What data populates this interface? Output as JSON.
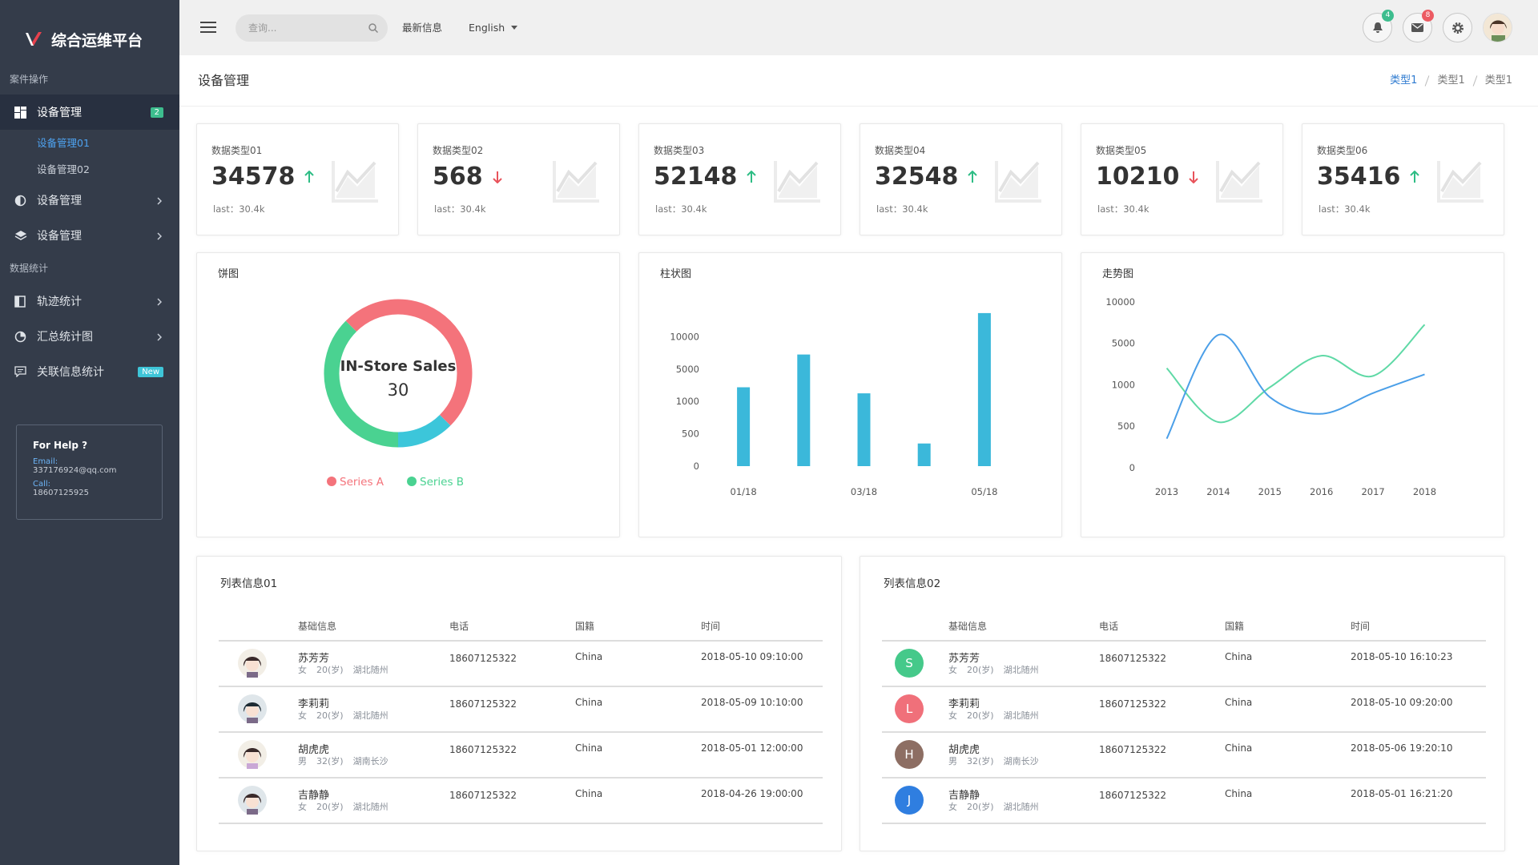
{
  "sidebar": {
    "brand": "综合运维平台",
    "groups": [
      {
        "title": "案件操作",
        "items": [
          {
            "label": "设备管理",
            "icon": "grid",
            "badge": "2",
            "badge_color": "#3dbd8e",
            "active": true,
            "active_child": 0,
            "children": [
              "设备管理01",
              "设备管理02"
            ]
          },
          {
            "label": "设备管理",
            "icon": "half",
            "arrow": true
          },
          {
            "label": "设备管理",
            "icon": "layers",
            "arrow": true
          }
        ]
      },
      {
        "title": "数据统计",
        "items": [
          {
            "label": "轨迹统计",
            "icon": "book",
            "arrow": true
          },
          {
            "label": "汇总统计图",
            "icon": "pie",
            "arrow": true
          },
          {
            "label": "关联信息统计",
            "icon": "chat",
            "badge": "New",
            "badge_color": "#3ec5d8"
          }
        ]
      }
    ],
    "help": {
      "title": "For Help ?",
      "email_label": "Email:",
      "email": "337176924@qq.com",
      "call_label": "Call:",
      "call": "18607125925"
    }
  },
  "topbar": {
    "search_placeholder": "查询...",
    "news": "最新信息",
    "language": "English",
    "notifications": 4,
    "messages": 8
  },
  "page": {
    "title": "设备管理",
    "breadcrumb": [
      "类型1",
      "类型1",
      "类型1"
    ]
  },
  "stats": [
    {
      "label": "数据类型01",
      "value": 34578,
      "trend": "up",
      "last": "last：30.4k"
    },
    {
      "label": "数据类型02",
      "value": 568,
      "trend": "down",
      "last": "last：30.4k"
    },
    {
      "label": "数据类型03",
      "value": 52148,
      "trend": "up",
      "last": "last：30.4k"
    },
    {
      "label": "数据类型04",
      "value": 32548,
      "trend": "up",
      "last": "last：30.4k"
    },
    {
      "label": "数据类型05",
      "value": 10210,
      "trend": "down",
      "last": "last：30.4k"
    },
    {
      "label": "数据类型06",
      "value": 35416,
      "trend": "up",
      "last": "last：30.4k"
    }
  ],
  "chart_data": [
    {
      "type": "pie",
      "title": "饼图",
      "center_title": "IN-Store Sales",
      "center_value": 30,
      "values": [
        50,
        12.5,
        37.5
      ],
      "labels": [
        "Series A",
        null,
        "Series B"
      ],
      "colors": [
        "#f4737b",
        "#3cc6da",
        "#4ad291"
      ]
    },
    {
      "type": "bar",
      "title": "柱状图",
      "categories": [
        "01/18",
        null,
        "03/18",
        null,
        "05/18"
      ],
      "values": [
        2750,
        7250,
        2000,
        350,
        13650
      ],
      "color": "#3bb8da",
      "ylim": [
        0,
        15000
      ],
      "yticks": [
        0,
        500,
        1000,
        5000,
        10000
      ],
      "scale": "piecewise"
    },
    {
      "type": "line",
      "title": "走势图",
      "categories": [
        "2013",
        "2014",
        "2015",
        "2016",
        "2017",
        "2018"
      ],
      "series": [
        {
          "color": "#5fd9a6",
          "values": [
            2600,
            550,
            970,
            3800,
            1850,
            7250
          ]
        },
        {
          "color": "#4b9fe8",
          "values": [
            350,
            6000,
            850,
            650,
            900,
            2000
          ]
        }
      ],
      "ylim": [
        0,
        10000
      ],
      "yticks": [
        0,
        500,
        1000,
        5000,
        10000
      ],
      "scale": "piecewise"
    }
  ],
  "tables": [
    {
      "title": "列表信息01",
      "columns": [
        "基础信息",
        "电话",
        "国籍",
        "时间"
      ],
      "rows": [
        {
          "name": "苏芳芳",
          "gender": "女",
          "age": "20(岁)",
          "place": "湖北随州",
          "phone": "18607125322",
          "country": "China",
          "time": "2018-05-10 09:10:00"
        },
        {
          "name": "李莉莉",
          "gender": "女",
          "age": "20(岁)",
          "place": "湖北随州",
          "phone": "18607125322",
          "country": "China",
          "time": "2018-05-09 10:10:00"
        },
        {
          "name": "胡虎虎",
          "gender": "男",
          "age": "32(岁)",
          "place": "湖南长沙",
          "phone": "18607125322",
          "country": "China",
          "time": "2018-05-01 12:00:00"
        },
        {
          "name": "吉静静",
          "gender": "女",
          "age": "20(岁)",
          "place": "湖北随州",
          "phone": "18607125322",
          "country": "China",
          "time": "2018-04-26 19:00:00"
        }
      ]
    },
    {
      "title": "列表信息02",
      "columns": [
        "基础信息",
        "电话",
        "国籍",
        "时间"
      ],
      "rows": [
        {
          "initial": "S",
          "color": "#45c98a",
          "name": "苏芳芳",
          "gender": "女",
          "age": "20(岁)",
          "place": "湖北随州",
          "phone": "18607125322",
          "country": "China",
          "time": "2018-05-10 16:10:23"
        },
        {
          "initial": "L",
          "color": "#f0707a",
          "name": "李莉莉",
          "gender": "女",
          "age": "20(岁)",
          "place": "湖北随州",
          "phone": "18607125322",
          "country": "China",
          "time": "2018-05-10 09:20:00"
        },
        {
          "initial": "H",
          "color": "#8d6e63",
          "name": "胡虎虎",
          "gender": "男",
          "age": "32(岁)",
          "place": "湖南长沙",
          "phone": "18607125322",
          "country": "China",
          "time": "2018-05-06 19:20:10"
        },
        {
          "initial": "J",
          "color": "#2f7ee0",
          "name": "吉静静",
          "gender": "女",
          "age": "20(岁)",
          "place": "湖北随州",
          "phone": "18607125322",
          "country": "China",
          "time": "2018-05-01 16:21:20"
        }
      ]
    }
  ]
}
